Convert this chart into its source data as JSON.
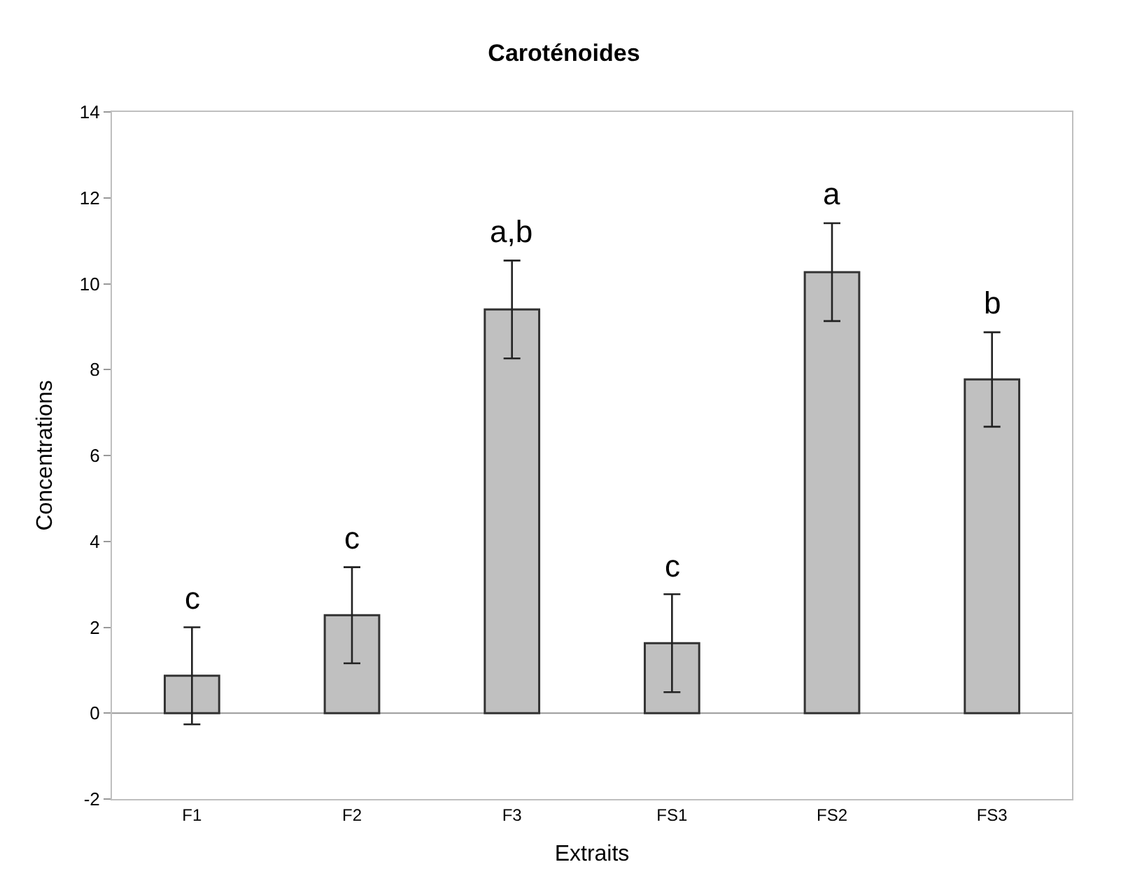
{
  "chart_data": {
    "type": "bar",
    "title": "Caroténoides",
    "xlabel": "Extraits",
    "ylabel": "Concentrations",
    "categories": [
      "F1",
      "F2",
      "F3",
      "FS1",
      "FS2",
      "FS3"
    ],
    "values": [
      0.87,
      2.28,
      9.4,
      1.63,
      10.27,
      7.77
    ],
    "errors": [
      1.13,
      1.12,
      1.14,
      1.14,
      1.14,
      1.1
    ],
    "color": "#c0c0c0",
    "ylim": [
      -2,
      14
    ],
    "yticks": [
      -2,
      0,
      2,
      4,
      6,
      8,
      10,
      12,
      14
    ],
    "grid": false,
    "legend": false,
    "ref_lines": [
      {
        "axis": "y",
        "value": 0,
        "color": "#999999"
      }
    ],
    "annotations": [
      {
        "text": "c",
        "x": "F1",
        "y": 2.0
      },
      {
        "text": "c",
        "x": "F2",
        "y": 3.4
      },
      {
        "text": "a,b",
        "x": "F3",
        "y": 10.54
      },
      {
        "text": "c",
        "x": "FS1",
        "y": 2.77
      },
      {
        "text": "a",
        "x": "FS2",
        "y": 11.41
      },
      {
        "text": "b",
        "x": "FS3",
        "y": 8.87
      }
    ]
  }
}
